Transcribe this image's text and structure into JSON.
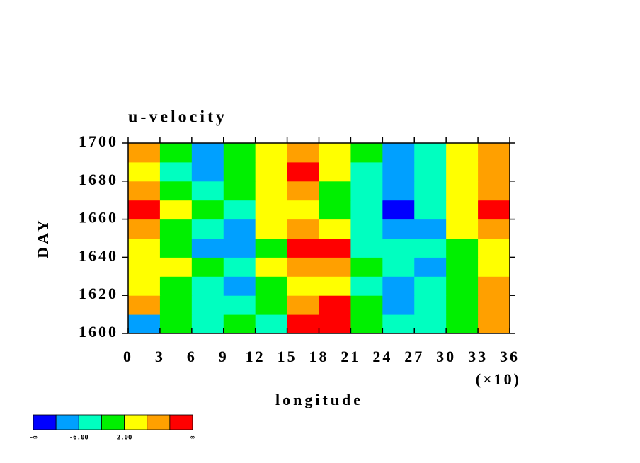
{
  "chart_data": {
    "type": "heatmap",
    "title": "u-velocity",
    "xlabel": "longitude",
    "ylabel": "DAY",
    "x_multiplier": "(×10)",
    "x_edges": [
      0,
      30,
      60,
      90,
      120,
      150,
      180,
      210,
      240,
      270,
      300,
      330,
      360
    ],
    "y_edges": [
      1600,
      1610,
      1620,
      1630,
      1640,
      1650,
      1660,
      1670,
      1680,
      1690,
      1700
    ],
    "z": [
      [
        -8,
        0,
        -4,
        0,
        -4,
        12,
        12,
        0,
        -4,
        -4,
        0,
        8
      ],
      [
        8,
        0,
        -4,
        -4,
        0,
        8,
        12,
        0,
        -8,
        -4,
        0,
        8
      ],
      [
        4,
        0,
        -4,
        -8,
        0,
        4,
        4,
        -4,
        -8,
        -4,
        0,
        8
      ],
      [
        4,
        4,
        0,
        -4,
        4,
        8,
        8,
        0,
        -4,
        -8,
        0,
        4
      ],
      [
        4,
        0,
        -8,
        -8,
        0,
        12,
        12,
        -4,
        -4,
        -4,
        0,
        4
      ],
      [
        8,
        0,
        -4,
        -8,
        4,
        8,
        4,
        -4,
        -8,
        -8,
        4,
        8
      ],
      [
        12,
        4,
        0,
        -4,
        4,
        4,
        0,
        -4,
        -12,
        -4,
        4,
        12
      ],
      [
        8,
        0,
        -4,
        0,
        4,
        8,
        0,
        -4,
        -8,
        -4,
        4,
        8
      ],
      [
        4,
        -4,
        -8,
        0,
        4,
        12,
        4,
        -4,
        -8,
        -4,
        4,
        8
      ],
      [
        8,
        0,
        -8,
        0,
        4,
        8,
        4,
        0,
        -8,
        -4,
        4,
        8
      ]
    ],
    "levels": [
      -10,
      -6,
      -2,
      2,
      6,
      10
    ],
    "colors": [
      "#0000ff",
      "#00a0ff",
      "#00ffc0",
      "#00f000",
      "#ffff00",
      "#ffa000",
      "#ff0000"
    ],
    "colorbar_ticks": [
      {
        "value": -6,
        "label": "-6.00"
      },
      {
        "value": 2,
        "label": "2.00"
      }
    ],
    "colorbar_low_label": "-∞",
    "colorbar_high_label": "∞",
    "xlim": [
      0,
      360
    ],
    "xticks": [
      {
        "value": 0,
        "label": "0"
      },
      {
        "value": 30,
        "label": "3"
      },
      {
        "value": 60,
        "label": "6"
      },
      {
        "value": 90,
        "label": "9"
      },
      {
        "value": 120,
        "label": "12"
      },
      {
        "value": 150,
        "label": "15"
      },
      {
        "value": 180,
        "label": "18"
      },
      {
        "value": 210,
        "label": "21"
      },
      {
        "value": 240,
        "label": "24"
      },
      {
        "value": 270,
        "label": "27"
      },
      {
        "value": 300,
        "label": "30"
      },
      {
        "value": 330,
        "label": "33"
      },
      {
        "value": 360,
        "label": "36"
      }
    ],
    "ylim": [
      1600,
      1700
    ],
    "yticks": [
      1600,
      1620,
      1640,
      1660,
      1680,
      1700
    ]
  }
}
